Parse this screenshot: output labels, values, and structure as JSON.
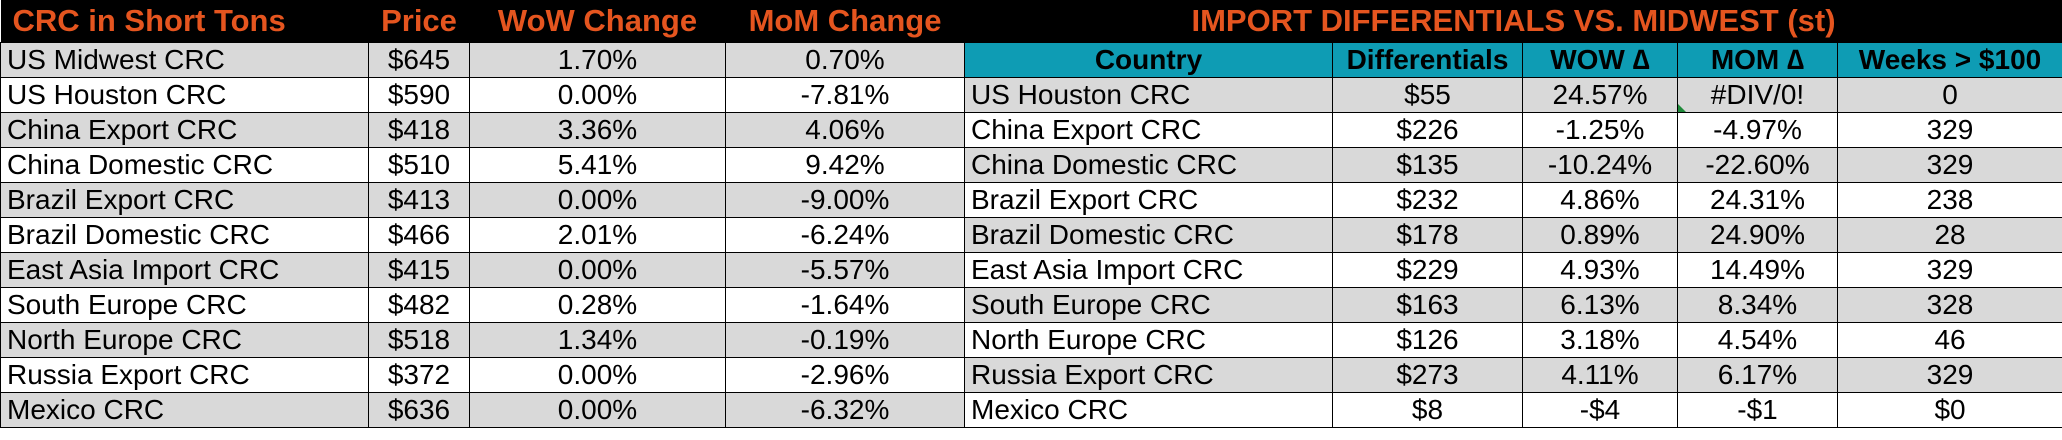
{
  "left": {
    "headers": [
      "CRC in Short Tons",
      "Price",
      "WoW Change",
      "MoM Change"
    ],
    "rows": [
      [
        "US Midwest CRC",
        "$645",
        "1.70%",
        "0.70%"
      ],
      [
        "US Houston CRC",
        "$590",
        "0.00%",
        "-7.81%"
      ],
      [
        "China Export CRC",
        "$418",
        "3.36%",
        "4.06%"
      ],
      [
        "China Domestic CRC",
        "$510",
        "5.41%",
        "9.42%"
      ],
      [
        "Brazil Export CRC",
        "$413",
        "0.00%",
        "-9.00%"
      ],
      [
        "Brazil Domestic CRC",
        "$466",
        "2.01%",
        "-6.24%"
      ],
      [
        "East Asia Import CRC",
        "$415",
        "0.00%",
        "-5.57%"
      ],
      [
        "South Europe CRC",
        "$482",
        "0.28%",
        "-1.64%"
      ],
      [
        "North Europe CRC",
        "$518",
        "1.34%",
        "-0.19%"
      ],
      [
        "Russia Export CRC",
        "$372",
        "0.00%",
        "-2.96%"
      ],
      [
        "Mexico CRC",
        "$636",
        "0.00%",
        "-6.32%"
      ]
    ]
  },
  "right": {
    "title": "IMPORT DIFFERENTIALS VS. MIDWEST (st)",
    "headers": [
      "Country",
      "Differentials",
      "WOW ∆",
      "MOM ∆",
      "Weeks > $100"
    ],
    "rows": [
      [
        "US Houston CRC",
        "$55",
        "24.57%",
        "#DIV/0!",
        "0"
      ],
      [
        "China Export CRC",
        "$226",
        "-1.25%",
        "-4.97%",
        "329"
      ],
      [
        "China Domestic CRC",
        "$135",
        "-10.24%",
        "-22.60%",
        "329"
      ],
      [
        "Brazil Export CRC",
        "$232",
        "4.86%",
        "24.31%",
        "238"
      ],
      [
        "Brazil Domestic CRC",
        "$178",
        "0.89%",
        "24.90%",
        "28"
      ],
      [
        "East Asia Import CRC",
        "$229",
        "4.93%",
        "14.49%",
        "329"
      ],
      [
        "South Europe CRC",
        "$163",
        "6.13%",
        "8.34%",
        "328"
      ],
      [
        "North Europe CRC",
        "$126",
        "3.18%",
        "4.54%",
        "46"
      ],
      [
        "Russia Export CRC",
        "$273",
        "4.11%",
        "6.17%",
        "329"
      ],
      [
        "Mexico CRC",
        "$8",
        "-$4",
        "-$1",
        "$0"
      ]
    ]
  }
}
